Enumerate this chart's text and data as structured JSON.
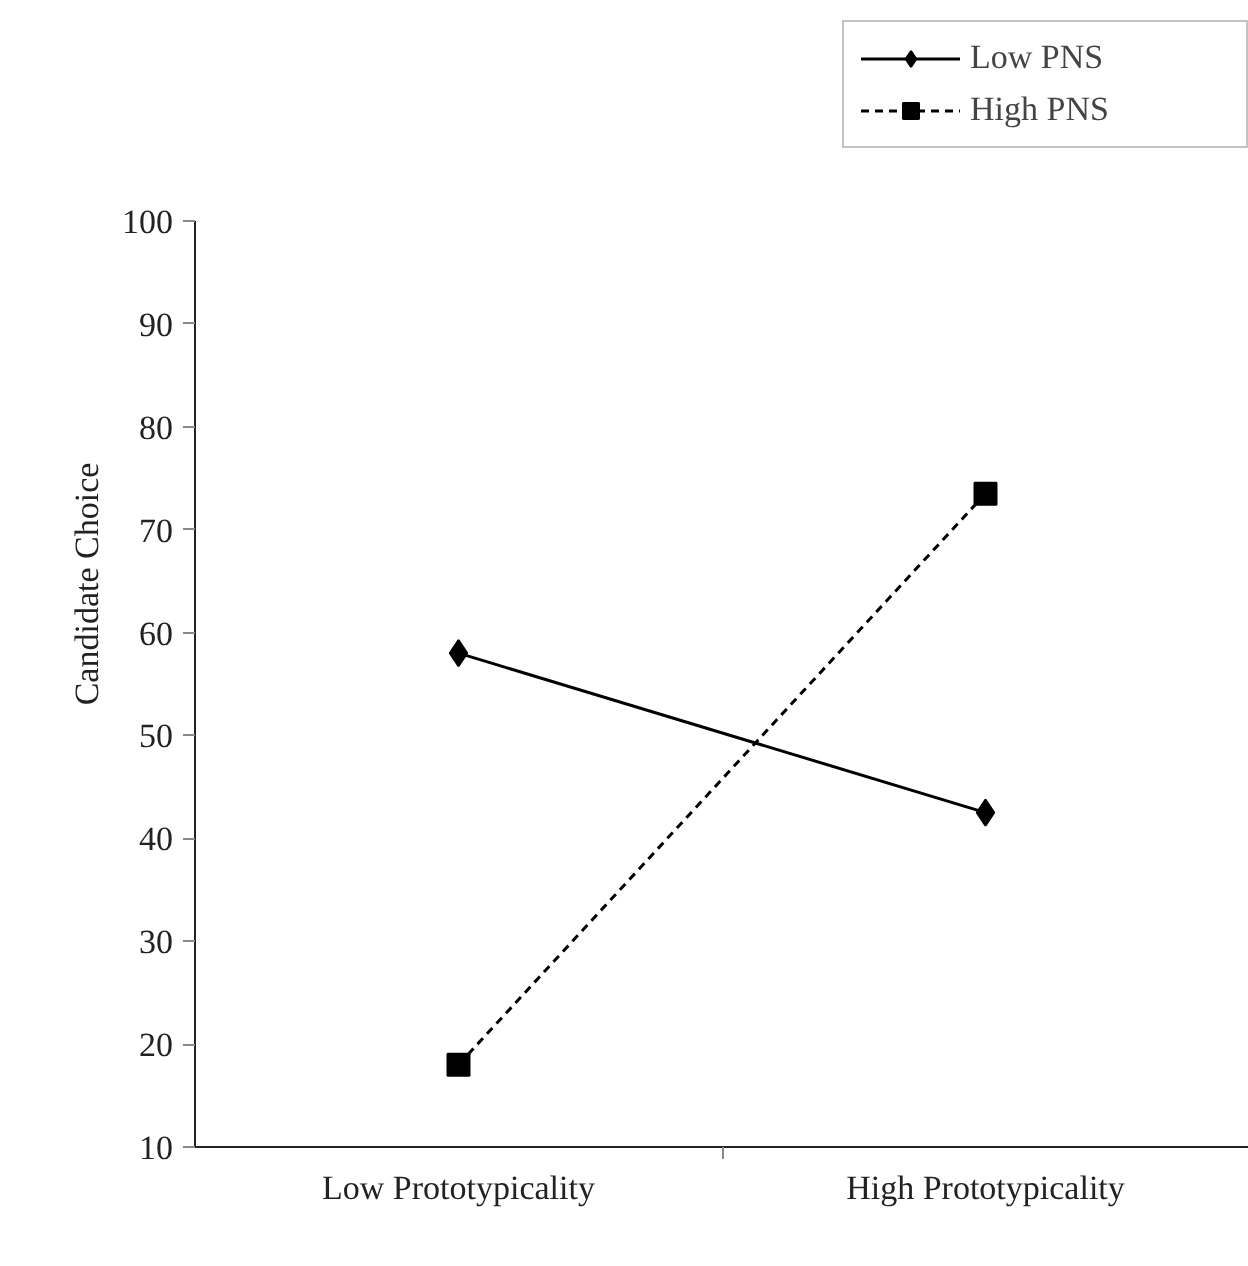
{
  "chart_data": {
    "type": "line",
    "categories": [
      "Low Prototypicality",
      "High Prototypicality"
    ],
    "ylabel": "Candidate Choice",
    "ylim": [
      10,
      100
    ],
    "yticks": [
      10,
      20,
      30,
      40,
      50,
      60,
      70,
      80,
      90,
      100
    ],
    "series": [
      {
        "name": "Low PNS",
        "color": "#000000",
        "values": [
          58,
          42.5
        ],
        "marker": "diamond",
        "line_style": "solid"
      },
      {
        "name": "High PNS",
        "color": "#000000",
        "values": [
          18,
          73.5
        ],
        "marker": "square",
        "line_style": "dashed"
      }
    ],
    "grid": false,
    "legend": "top right"
  }
}
